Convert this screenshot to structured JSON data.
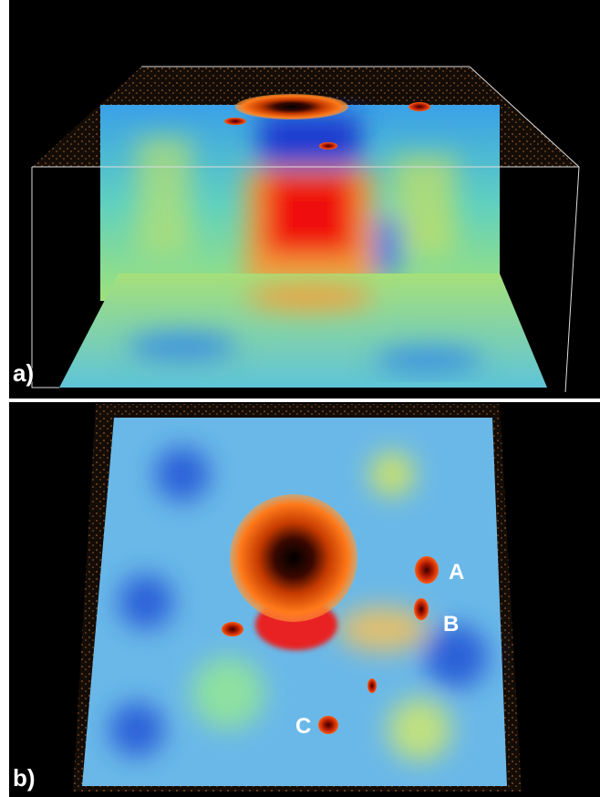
{
  "panel_a": {
    "label": "a)"
  },
  "panel_b": {
    "label": "b)",
    "markers": [
      "A",
      "B",
      "C"
    ]
  }
}
